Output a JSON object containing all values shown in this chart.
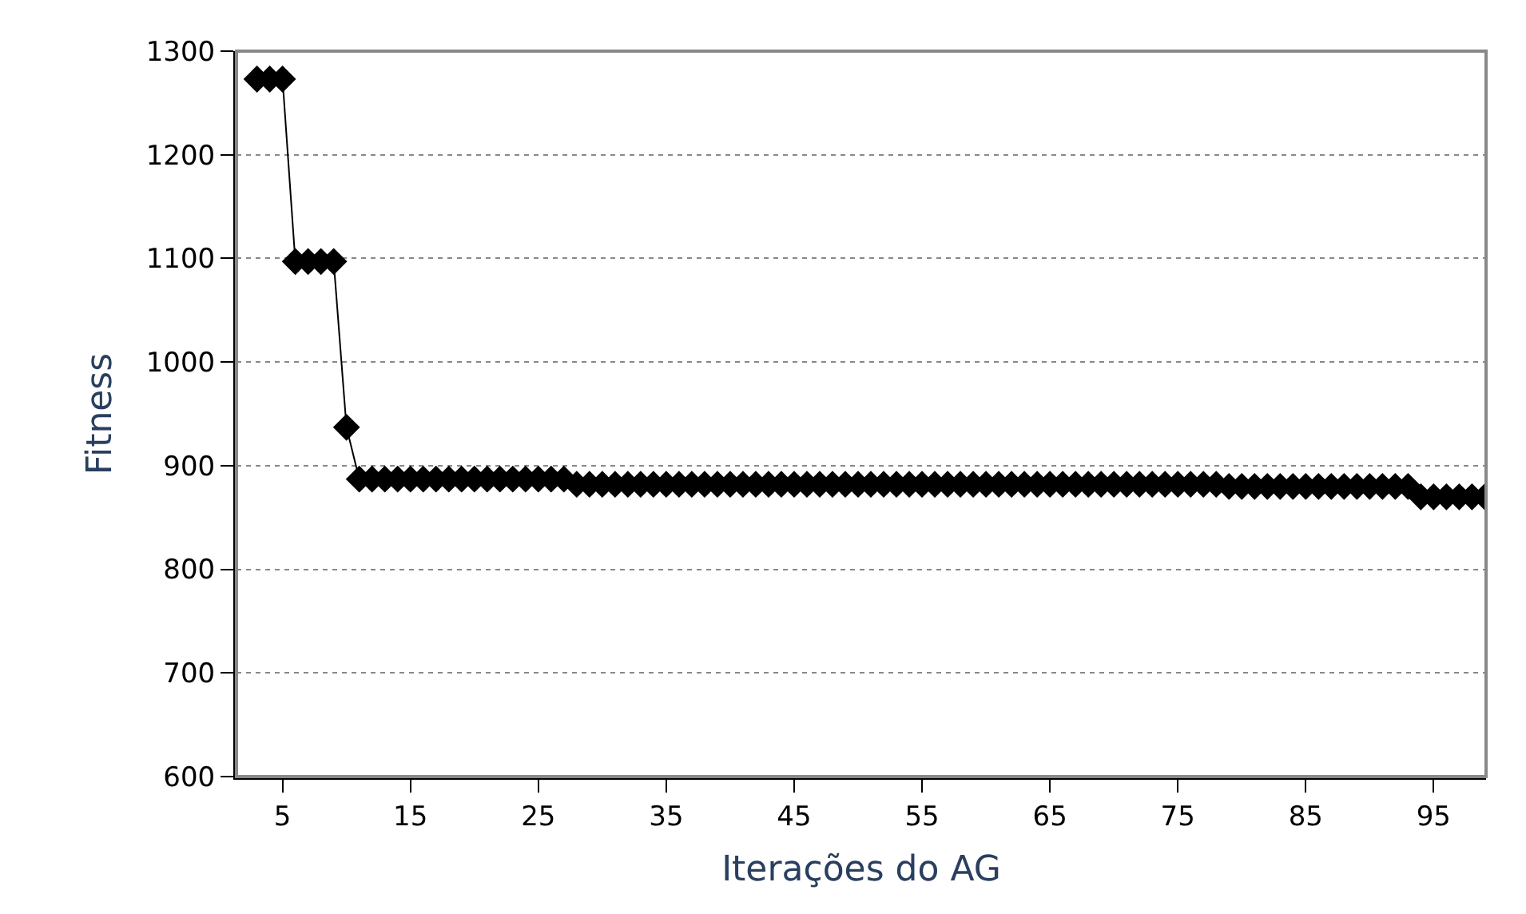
{
  "chart_data": {
    "type": "line",
    "xlabel": "Iterações do AG",
    "ylabel": "Fitness",
    "x": [
      3,
      4,
      5,
      6,
      7,
      8,
      9,
      10,
      11,
      12,
      13,
      14,
      15,
      16,
      17,
      18,
      19,
      20,
      21,
      22,
      23,
      24,
      25,
      26,
      27,
      28,
      29,
      30,
      31,
      32,
      33,
      34,
      35,
      36,
      37,
      38,
      39,
      40,
      41,
      42,
      43,
      44,
      45,
      46,
      47,
      48,
      49,
      50,
      51,
      52,
      53,
      54,
      55,
      56,
      57,
      58,
      59,
      60,
      61,
      62,
      63,
      64,
      65,
      66,
      67,
      68,
      69,
      70,
      71,
      72,
      73,
      74,
      75,
      76,
      77,
      78,
      79,
      80,
      81,
      82,
      83,
      84,
      85,
      86,
      87,
      88,
      89,
      90,
      91,
      92,
      93,
      94,
      95,
      96,
      97,
      98,
      99
    ],
    "series": [
      {
        "color": "#000000",
        "values": [
          1273,
          1273,
          1273,
          1097,
          1097,
          1097,
          1097,
          937,
          887,
          887,
          887,
          887,
          887,
          887,
          887,
          887,
          887,
          887,
          887,
          887,
          887,
          887,
          887,
          887,
          887,
          882,
          882,
          882,
          882,
          882,
          882,
          882,
          882,
          882,
          882,
          882,
          882,
          882,
          882,
          882,
          882,
          882,
          882,
          882,
          882,
          882,
          882,
          882,
          882,
          882,
          882,
          882,
          882,
          882,
          882,
          882,
          882,
          882,
          882,
          882,
          882,
          882,
          882,
          882,
          882,
          882,
          882,
          882,
          882,
          882,
          882,
          882,
          882,
          882,
          882,
          882,
          880,
          880,
          880,
          880,
          880,
          880,
          880,
          880,
          880,
          880,
          880,
          880,
          880,
          880,
          880,
          870,
          870,
          870,
          870,
          870,
          870
        ]
      }
    ],
    "xlim": [
      1.4,
      99.1
    ],
    "xticks": [
      5,
      15,
      25,
      35,
      45,
      55,
      65,
      75,
      85,
      95
    ],
    "ylim": [
      600,
      1300
    ],
    "yticks": [
      600,
      700,
      800,
      900,
      1000,
      1100,
      1200,
      1300
    ],
    "grid": "y",
    "marker": "diamond",
    "line_style": "solid",
    "legend": false
  }
}
